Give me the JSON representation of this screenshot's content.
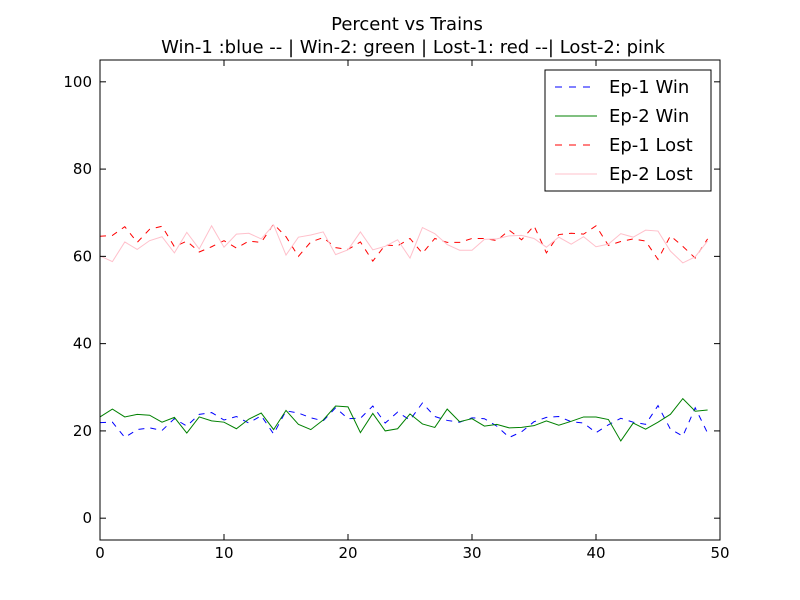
{
  "chart_data": {
    "type": "line",
    "title": "Percent vs Trains",
    "subtitle": "Win-1 :blue -- | Win-2: green | Lost-1: red --| Lost-2: pink",
    "xlim": [
      0,
      50
    ],
    "ylim": [
      -5,
      105
    ],
    "xticks": [
      0,
      10,
      20,
      30,
      40,
      50
    ],
    "yticks": [
      0,
      20,
      40,
      60,
      80,
      100
    ],
    "legend_position": "top-right",
    "x": [
      0,
      1,
      2,
      3,
      4,
      5,
      6,
      7,
      8,
      9,
      10,
      11,
      12,
      13,
      14,
      15,
      16,
      17,
      18,
      19,
      20,
      21,
      22,
      23,
      24,
      25,
      26,
      27,
      28,
      29,
      30,
      31,
      32,
      33,
      34,
      35,
      36,
      37,
      38,
      39,
      40,
      41,
      42,
      43,
      44,
      45,
      46,
      47,
      48,
      49
    ],
    "series": [
      {
        "name": "Ep-1 Win",
        "color": "#0000ff",
        "dashed": true,
        "values": [
          21.9,
          22.0,
          18.5,
          20.3,
          20.7,
          20.1,
          22.8,
          21.1,
          23.8,
          24.2,
          22.5,
          23.3,
          21.8,
          23.5,
          19.3,
          24.6,
          24.1,
          23.0,
          22.3,
          25.3,
          22.8,
          22.9,
          25.7,
          21.8,
          24.3,
          22.5,
          26.4,
          23.3,
          22.4,
          22.0,
          23.0,
          22.8,
          21.1,
          18.5,
          19.8,
          22.1,
          23.1,
          23.3,
          22.1,
          21.8,
          19.6,
          21.4,
          22.9,
          22.0,
          21.5,
          25.8,
          20.4,
          18.8,
          25.3,
          19.5
        ]
      },
      {
        "name": "Ep-2 Win",
        "color": "#008000",
        "dashed": false,
        "values": [
          23.2,
          25.0,
          23.2,
          23.8,
          23.6,
          22.0,
          23.1,
          19.5,
          23.2,
          22.3,
          22.0,
          20.5,
          22.7,
          24.1,
          20.3,
          24.7,
          21.5,
          20.3,
          22.5,
          25.7,
          25.5,
          19.6,
          24.0,
          20.0,
          20.5,
          23.9,
          21.6,
          20.8,
          25.0,
          22.1,
          22.8,
          21.1,
          21.5,
          20.7,
          20.8,
          21.2,
          22.3,
          21.3,
          22.2,
          23.2,
          23.2,
          22.6,
          17.7,
          21.8,
          20.4,
          22.0,
          23.8,
          27.4,
          24.5,
          24.8
        ]
      },
      {
        "name": "Ep-1 Lost",
        "color": "#ff0000",
        "dashed": true,
        "values": [
          64.6,
          64.8,
          66.8,
          63.2,
          66.2,
          66.9,
          62.2,
          63.5,
          61.0,
          62.2,
          63.6,
          61.9,
          63.5,
          63.2,
          67.4,
          64.5,
          60.0,
          63.3,
          64.3,
          62.0,
          61.6,
          63.3,
          58.9,
          62.6,
          62.4,
          64.1,
          60.7,
          64.1,
          63.2,
          63.2,
          64.1,
          64.1,
          63.6,
          66.0,
          63.8,
          67.0,
          60.8,
          65.0,
          65.3,
          65.1,
          67.0,
          62.5,
          63.4,
          64.0,
          63.5,
          59.3,
          64.7,
          62.3,
          59.6,
          64.0
        ]
      },
      {
        "name": "Ep-2 Lost",
        "color": "#ffc0cb",
        "dashed": false,
        "values": [
          60.1,
          58.8,
          63.3,
          61.6,
          63.6,
          64.5,
          60.8,
          65.5,
          61.7,
          67.0,
          62.1,
          65.1,
          65.3,
          64.0,
          67.2,
          60.3,
          64.4,
          64.9,
          65.6,
          60.4,
          61.5,
          65.6,
          61.5,
          62.3,
          63.8,
          59.6,
          66.6,
          65.2,
          62.7,
          61.4,
          61.4,
          63.9,
          64.0,
          64.7,
          64.8,
          64.1,
          62.1,
          64.4,
          62.8,
          64.5,
          62.2,
          62.8,
          65.2,
          64.4,
          66.0,
          65.8,
          61.2,
          58.5,
          59.9,
          63.5
        ]
      }
    ]
  }
}
